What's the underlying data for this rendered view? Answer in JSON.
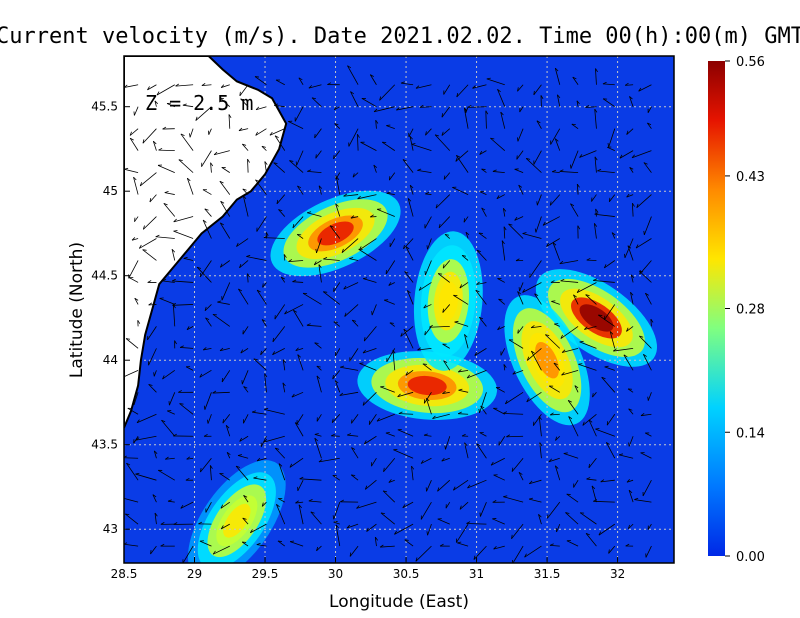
{
  "chart_data": {
    "type": "heatmap",
    "title": "Current velocity (m/s). Date 2021.02.02. Time 00(h):00(m) GMT",
    "xlabel": "Longitude (East)",
    "ylabel": "Latitude (North)",
    "annotation": "Z = 2.5 m",
    "xlim": [
      28.5,
      32.4
    ],
    "ylim": [
      42.8,
      45.8
    ],
    "x_ticks": [
      "28.5",
      "29",
      "29.5",
      "30",
      "30.5",
      "31",
      "31.5",
      "32"
    ],
    "y_ticks": [
      "43",
      "43.5",
      "44",
      "44.5",
      "45",
      "45.5"
    ],
    "colorbar": {
      "min": 0.0,
      "max": 0.56,
      "tick_labels": [
        "0.00",
        "0.14",
        "0.28",
        "0.43",
        "0.56"
      ],
      "colors": [
        "#0028e6",
        "#00a0ff",
        "#00e8ff",
        "#c8ff30",
        "#ffe600",
        "#ff8a00",
        "#e61400",
        "#8c0000"
      ]
    },
    "velocity_maxima": [
      {
        "lon": 30.0,
        "lat": 44.75,
        "speed": 0.5
      },
      {
        "lon": 30.65,
        "lat": 43.85,
        "speed": 0.52
      },
      {
        "lon": 31.85,
        "lat": 44.25,
        "speed": 0.53
      },
      {
        "lon": 31.5,
        "lat": 44.0,
        "speed": 0.42
      },
      {
        "lon": 30.8,
        "lat": 44.35,
        "speed": 0.35
      },
      {
        "lon": 29.3,
        "lat": 43.05,
        "speed": 0.3
      }
    ],
    "coastline": [
      [
        29.1,
        45.8
      ],
      [
        29.2,
        45.72
      ],
      [
        29.3,
        45.65
      ],
      [
        29.45,
        45.6
      ],
      [
        29.55,
        45.55
      ],
      [
        29.65,
        45.4
      ],
      [
        29.6,
        45.25
      ],
      [
        29.5,
        45.1
      ],
      [
        29.4,
        45.0
      ],
      [
        29.3,
        44.95
      ],
      [
        29.2,
        44.85
      ],
      [
        29.05,
        44.75
      ],
      [
        28.95,
        44.65
      ],
      [
        28.85,
        44.55
      ],
      [
        28.75,
        44.45
      ],
      [
        28.7,
        44.3
      ],
      [
        28.65,
        44.15
      ],
      [
        28.62,
        44.0
      ],
      [
        28.6,
        43.85
      ],
      [
        28.55,
        43.7
      ],
      [
        28.5,
        43.6
      ]
    ]
  },
  "icons": {
    "land": "land-mass"
  }
}
